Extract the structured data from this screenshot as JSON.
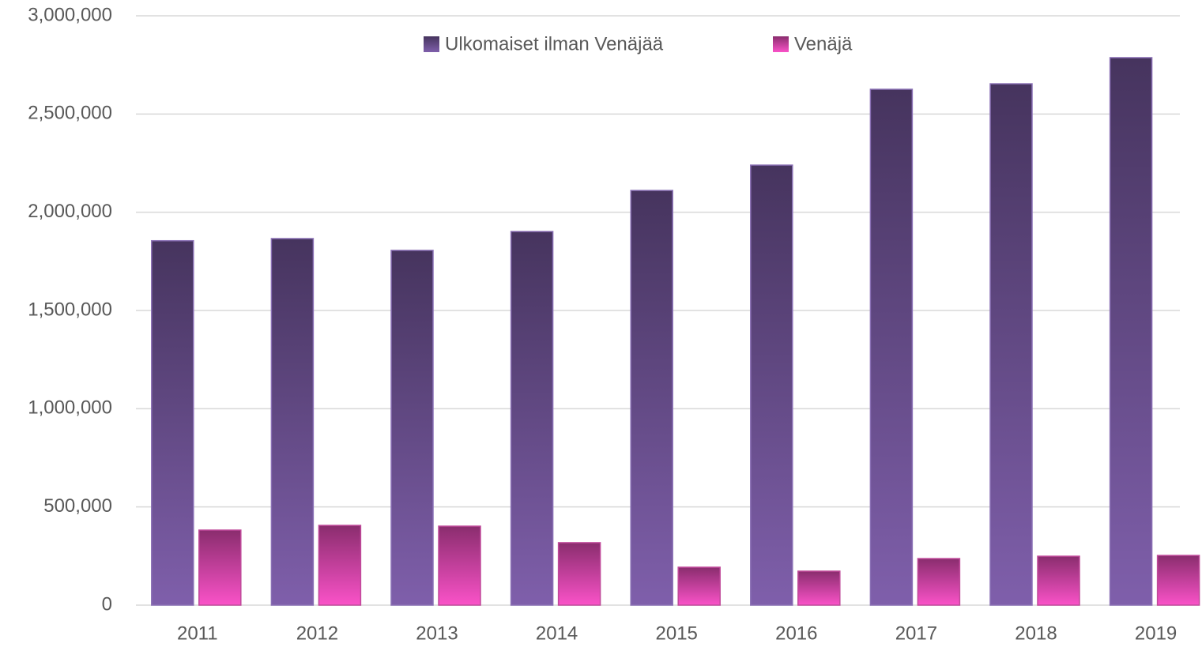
{
  "chart_data": {
    "type": "bar",
    "categories": [
      "2011",
      "2012",
      "2013",
      "2014",
      "2015",
      "2016",
      "2017",
      "2018",
      "2019"
    ],
    "series": [
      {
        "name": "Ulkomaiset ilman Venäjää",
        "color": "#7f5fab",
        "values": [
          1855000,
          1866000,
          1806000,
          1902000,
          2111000,
          2240000,
          2626000,
          2654000,
          2787000
        ]
      },
      {
        "name": "Venäjä",
        "color": "#fa52c8",
        "values": [
          382000,
          406000,
          402000,
          318000,
          193000,
          173000,
          237000,
          249000,
          253000
        ]
      }
    ],
    "ylim": [
      0,
      3000000
    ],
    "yticks": [
      0,
      {
        "value": 500000,
        "label": "500,000"
      },
      {
        "value": 1000000,
        "label": "1,000,000"
      },
      {
        "value": 1500000,
        "label": "1,500,000"
      },
      {
        "value": 2000000,
        "label": "2,000,000"
      },
      {
        "value": 2500000,
        "label": "2,500,000"
      },
      {
        "value": 3000000,
        "label": "3,000,000"
      }
    ],
    "grid": true,
    "legend": "top"
  }
}
